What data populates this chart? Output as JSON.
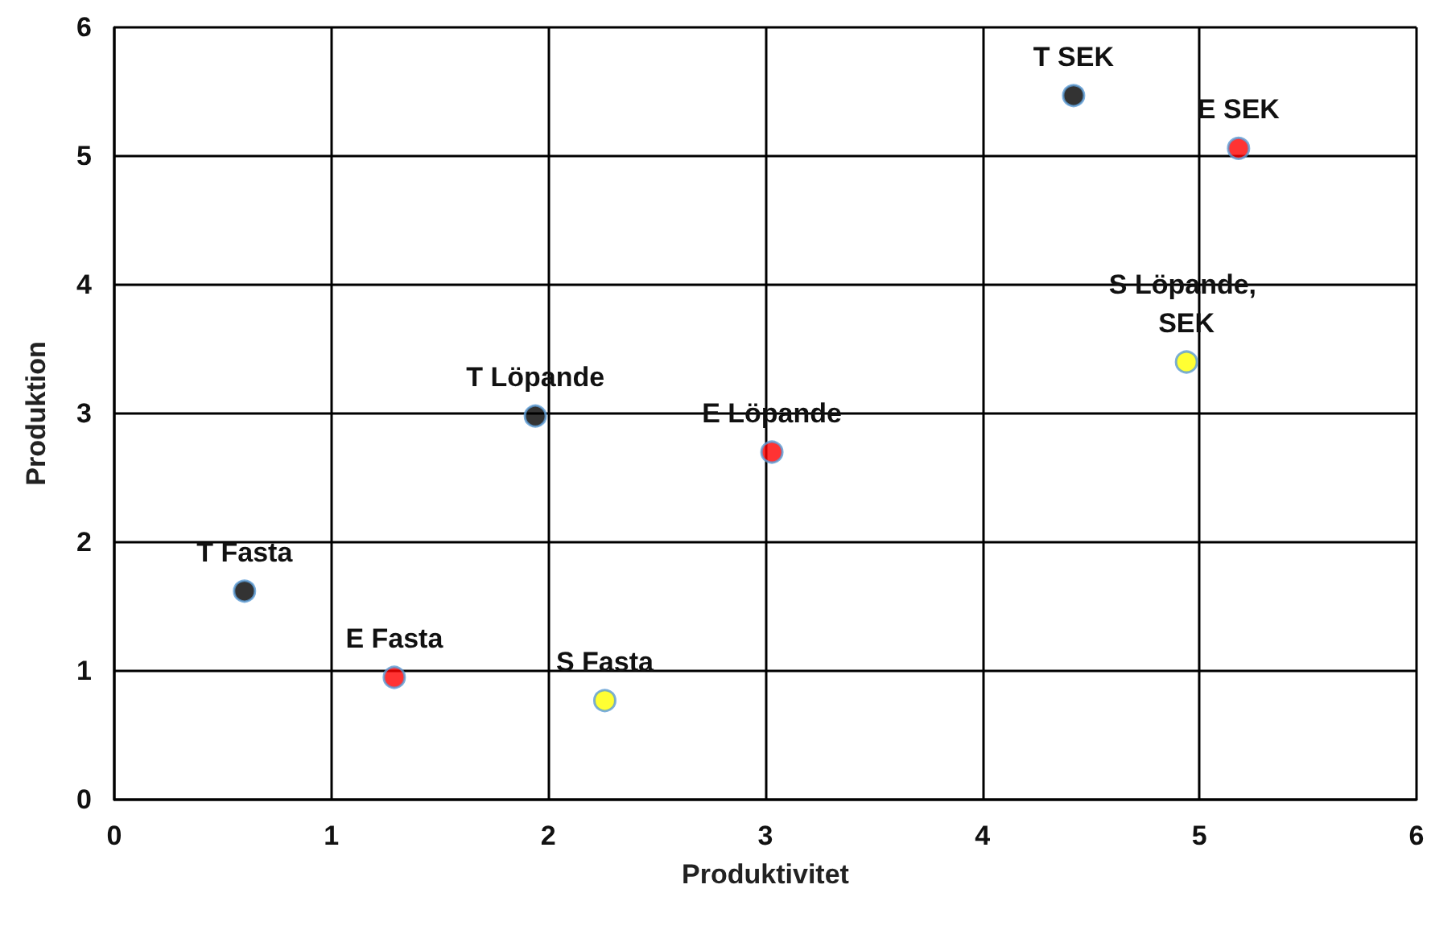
{
  "chart_data": {
    "type": "scatter",
    "xlabel": "Produktivitet",
    "ylabel": "Produktion",
    "x": [
      0.6,
      1.29,
      2.26,
      1.94,
      3.03,
      4.42,
      5.18,
      4.94
    ],
    "values": [
      1.62,
      0.95,
      0.77,
      2.98,
      2.7,
      5.47,
      5.06,
      3.4
    ],
    "colors": [
      "#000000",
      "#ff0000",
      "#ffff00",
      "#000000",
      "#ff0000",
      "#000000",
      "#ff0000",
      "#ffff00"
    ],
    "annotations": [
      {
        "text": "T Fasta",
        "x": 0.6,
        "y": 1.62
      },
      {
        "text": "E Fasta",
        "x": 1.29,
        "y": 0.95
      },
      {
        "text": "S Fasta",
        "x": 2.26,
        "y": 0.77
      },
      {
        "text": "T Löpande",
        "x": 1.94,
        "y": 2.98
      },
      {
        "text": "E Löpande",
        "x": 3.03,
        "y": 2.7
      },
      {
        "text": "T SEK",
        "x": 4.42,
        "y": 5.47
      },
      {
        "text": "E SEK",
        "x": 5.18,
        "y": 5.06
      },
      {
        "text": "S Löpande, SEK",
        "x": 4.94,
        "y": 3.4
      }
    ],
    "xlim": [
      0,
      6
    ],
    "xticks": [
      0,
      1,
      2,
      3,
      4,
      5,
      6
    ],
    "ylim": [
      0,
      6
    ],
    "yticks": [
      0,
      1,
      2,
      3,
      4,
      5,
      6
    ],
    "grid": true,
    "marker": "circle"
  }
}
